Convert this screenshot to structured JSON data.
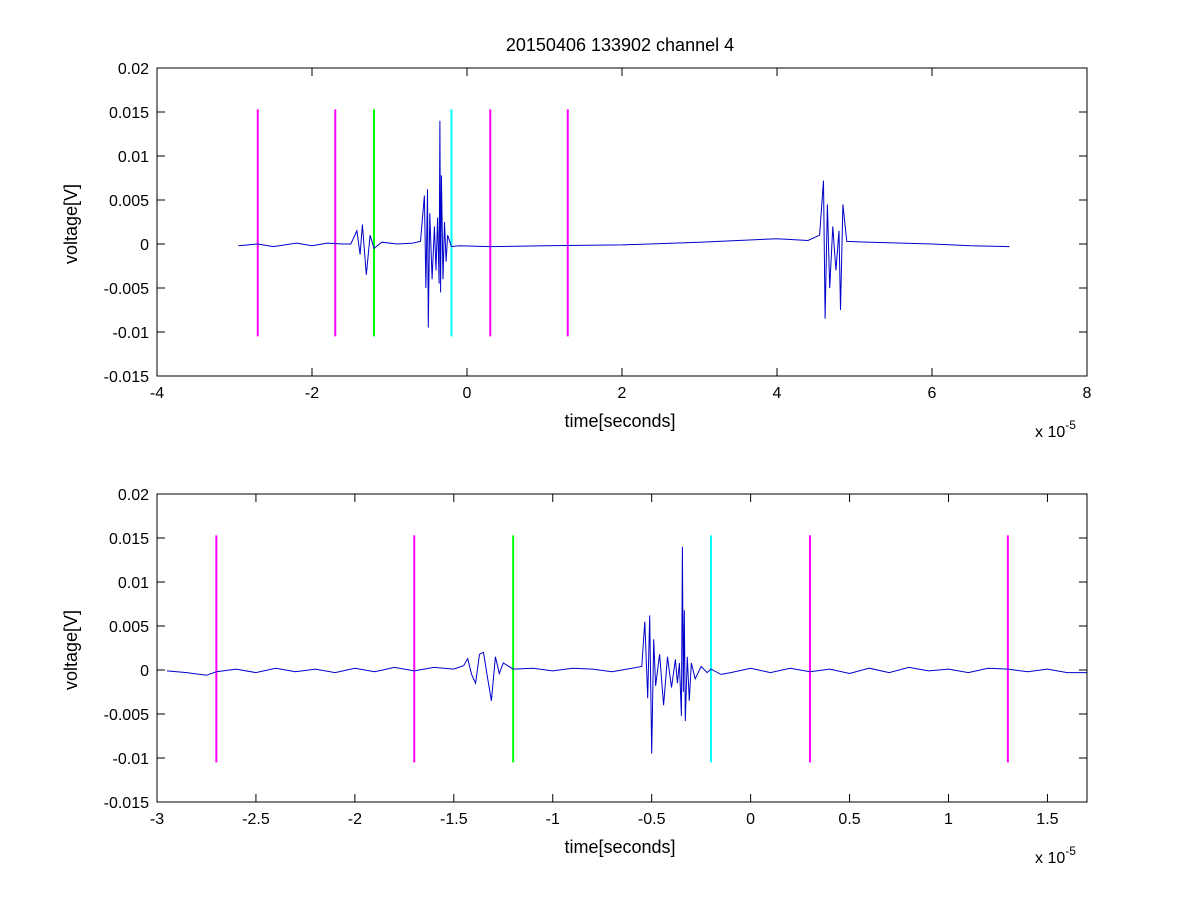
{
  "chart_data": [
    {
      "type": "line",
      "title": "20150406 133902 channel 4",
      "xlabel": "time[seconds]",
      "ylabel": "voltage[V]",
      "x_exponent_label": "x 10",
      "x_exponent": "-5",
      "xlim": [
        -4,
        8
      ],
      "ylim": [
        -0.015,
        0.02
      ],
      "x_ticks": [
        "-4",
        "-2",
        "0",
        "2",
        "4",
        "6",
        "8"
      ],
      "y_ticks": [
        "-0.015",
        "-0.01",
        "-0.005",
        "0",
        "0.005",
        "0.01",
        "0.015",
        "0.02"
      ],
      "grid": false,
      "series": [
        {
          "color": "#0000cc",
          "x": [
            -2.95,
            -2.7,
            -2.5,
            -2.2,
            -2.0,
            -1.8,
            -1.6,
            -1.5,
            -1.42,
            -1.38,
            -1.35,
            -1.3,
            -1.25,
            -1.2,
            -1.1,
            -0.9,
            -0.7,
            -0.6,
            -0.55,
            -0.53,
            -0.51,
            -0.5,
            -0.48,
            -0.45,
            -0.42,
            -0.4,
            -0.38,
            -0.36,
            -0.35,
            -0.34,
            -0.33,
            -0.31,
            -0.29,
            -0.27,
            -0.25,
            -0.2,
            -0.1,
            0.3,
            1.0,
            2.0,
            3.0,
            3.5,
            4.0,
            4.4,
            4.55,
            4.6,
            4.62,
            4.65,
            4.68,
            4.72,
            4.76,
            4.8,
            4.82,
            4.85,
            4.9,
            5.2,
            6.0,
            6.5,
            7.0
          ],
          "y": [
            -0.0002,
            0.0,
            -0.0003,
            0.0001,
            -0.0002,
            0.0001,
            0.0,
            0.0,
            0.0015,
            -0.0012,
            0.0022,
            -0.0035,
            0.001,
            -0.0005,
            0.0002,
            0.0,
            0.0001,
            0.0003,
            0.0055,
            -0.005,
            0.0062,
            -0.0095,
            0.0035,
            -0.004,
            0.002,
            -0.003,
            0.003,
            -0.0045,
            0.014,
            -0.0055,
            0.0078,
            -0.004,
            0.0025,
            -0.002,
            0.001,
            -0.0003,
            -0.0002,
            -0.0003,
            -0.0002,
            -0.0001,
            0.0002,
            0.0004,
            0.0006,
            0.0004,
            0.001,
            0.0072,
            -0.0085,
            0.0045,
            -0.005,
            0.002,
            -0.003,
            0.0015,
            -0.0075,
            0.0045,
            0.0003,
            0.0002,
            0.0,
            -0.0002,
            -0.0003
          ]
        }
      ],
      "vertical_markers": [
        {
          "x": -2.7,
          "color": "#ff00ff",
          "y_range": [
            -0.0105,
            0.0153
          ]
        },
        {
          "x": -1.7,
          "color": "#ff00ff",
          "y_range": [
            -0.0105,
            0.0153
          ]
        },
        {
          "x": -1.2,
          "color": "#00ff00",
          "y_range": [
            -0.0105,
            0.0153
          ]
        },
        {
          "x": -0.2,
          "color": "#00ffff",
          "y_range": [
            -0.0105,
            0.0153
          ]
        },
        {
          "x": 0.3,
          "color": "#ff00ff",
          "y_range": [
            -0.0105,
            0.0153
          ]
        },
        {
          "x": 1.3,
          "color": "#ff00ff",
          "y_range": [
            -0.0105,
            0.0153
          ]
        }
      ]
    },
    {
      "type": "line",
      "title": "",
      "xlabel": "time[seconds]",
      "ylabel": "voltage[V]",
      "x_exponent_label": "x 10",
      "x_exponent": "-5",
      "xlim": [
        -3.0,
        1.7
      ],
      "ylim": [
        -0.015,
        0.02
      ],
      "x_ticks": [
        "-3",
        "-2.5",
        "-2",
        "-1.5",
        "-1",
        "-0.5",
        "0",
        "0.5",
        "1",
        "1.5"
      ],
      "y_ticks": [
        "-0.015",
        "-0.01",
        "-0.005",
        "0",
        "0.005",
        "0.01",
        "0.015",
        "0.02"
      ],
      "grid": false,
      "series": [
        {
          "color": "#0000cc",
          "x": [
            -2.95,
            -2.85,
            -2.75,
            -2.7,
            -2.6,
            -2.5,
            -2.4,
            -2.3,
            -2.2,
            -2.1,
            -2.0,
            -1.9,
            -1.8,
            -1.7,
            -1.6,
            -1.5,
            -1.45,
            -1.43,
            -1.41,
            -1.39,
            -1.37,
            -1.35,
            -1.33,
            -1.31,
            -1.29,
            -1.27,
            -1.25,
            -1.2,
            -1.1,
            -1.0,
            -0.9,
            -0.8,
            -0.7,
            -0.6,
            -0.55,
            -0.535,
            -0.52,
            -0.51,
            -0.5,
            -0.49,
            -0.48,
            -0.46,
            -0.44,
            -0.42,
            -0.4,
            -0.38,
            -0.37,
            -0.36,
            -0.35,
            -0.345,
            -0.34,
            -0.335,
            -0.33,
            -0.32,
            -0.31,
            -0.3,
            -0.28,
            -0.25,
            -0.22,
            -0.2,
            -0.15,
            -0.1,
            0.0,
            0.1,
            0.2,
            0.3,
            0.4,
            0.5,
            0.6,
            0.7,
            0.8,
            0.9,
            1.0,
            1.1,
            1.2,
            1.3,
            1.4,
            1.5,
            1.6,
            1.7
          ],
          "y": [
            -0.0001,
            -0.0003,
            -0.0006,
            -0.0002,
            0.0001,
            -0.0003,
            0.0002,
            -0.0002,
            0.0001,
            -0.0003,
            0.0002,
            -0.0002,
            0.0003,
            -0.0001,
            0.0003,
            0.0001,
            0.0005,
            0.0013,
            -0.0005,
            -0.0015,
            0.0018,
            0.002,
            -0.0008,
            -0.0035,
            0.0015,
            -0.0004,
            0.0008,
            0.0001,
            0.0002,
            -0.0001,
            0.0002,
            0.0001,
            -0.0002,
            0.0002,
            0.0004,
            0.0055,
            -0.0032,
            0.0062,
            -0.0095,
            0.0035,
            -0.0018,
            0.0018,
            -0.004,
            0.0015,
            -0.002,
            0.0012,
            -0.0015,
            0.0008,
            -0.0052,
            0.014,
            -0.0025,
            0.0068,
            -0.0058,
            0.0015,
            -0.0035,
            0.0008,
            -0.001,
            0.0004,
            -0.0003,
            0.0001,
            -0.0005,
            -0.0003,
            0.0002,
            -0.0003,
            0.0002,
            -0.0002,
            0.0001,
            -0.0004,
            0.0002,
            -0.0003,
            0.0003,
            -0.0001,
            0.0001,
            -0.0003,
            0.0002,
            0.0001,
            -0.0002,
            0.0001,
            -0.0003,
            -0.0003
          ]
        }
      ],
      "vertical_markers": [
        {
          "x": -2.7,
          "color": "#ff00ff",
          "y_range": [
            -0.0105,
            0.0153
          ]
        },
        {
          "x": -1.7,
          "color": "#ff00ff",
          "y_range": [
            -0.0105,
            0.0153
          ]
        },
        {
          "x": -1.2,
          "color": "#00ff00",
          "y_range": [
            -0.0105,
            0.0153
          ]
        },
        {
          "x": -0.2,
          "color": "#00ffff",
          "y_range": [
            -0.0105,
            0.0153
          ]
        },
        {
          "x": 0.3,
          "color": "#ff00ff",
          "y_range": [
            -0.0105,
            0.0153
          ]
        },
        {
          "x": 1.3,
          "color": "#ff00ff",
          "y_range": [
            -0.0105,
            0.0153
          ]
        }
      ]
    }
  ]
}
